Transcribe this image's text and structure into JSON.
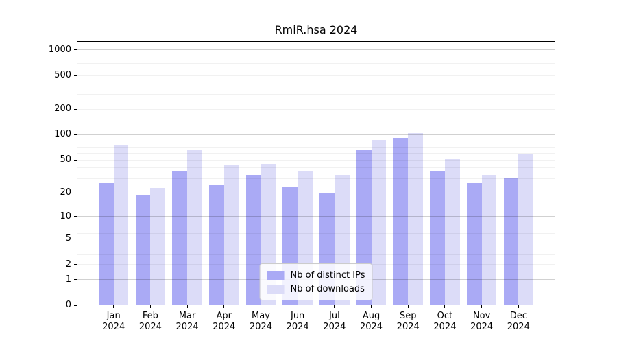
{
  "title": "RmiR.hsa 2024",
  "chart_data": {
    "type": "bar",
    "title": "RmiR.hsa 2024",
    "y_scale": "log10(1+x)",
    "grid": "horizontal",
    "legend_position": "lower center",
    "categories": [
      "Jan 2024",
      "Feb 2024",
      "Mar 2024",
      "Apr 2024",
      "May 2024",
      "Jun 2024",
      "Jul 2024",
      "Aug 2024",
      "Sep 2024",
      "Oct 2024",
      "Nov 2024",
      "Dec 2024"
    ],
    "series": [
      {
        "name": "Nb of distinct IPs",
        "color": "#aaaaf5",
        "values": [
          26,
          19,
          36,
          25,
          33,
          24,
          20,
          67,
          91,
          36,
          26,
          30
        ]
      },
      {
        "name": "Nb of downloads",
        "color": "#dcdcf8",
        "values": [
          74,
          23,
          67,
          43,
          45,
          36,
          33,
          87,
          105,
          51,
          33,
          59
        ]
      }
    ],
    "y_ticks": [
      0,
      1,
      2,
      5,
      10,
      20,
      50,
      100,
      200,
      500,
      1000
    ],
    "ylim": [
      0,
      1270
    ]
  }
}
